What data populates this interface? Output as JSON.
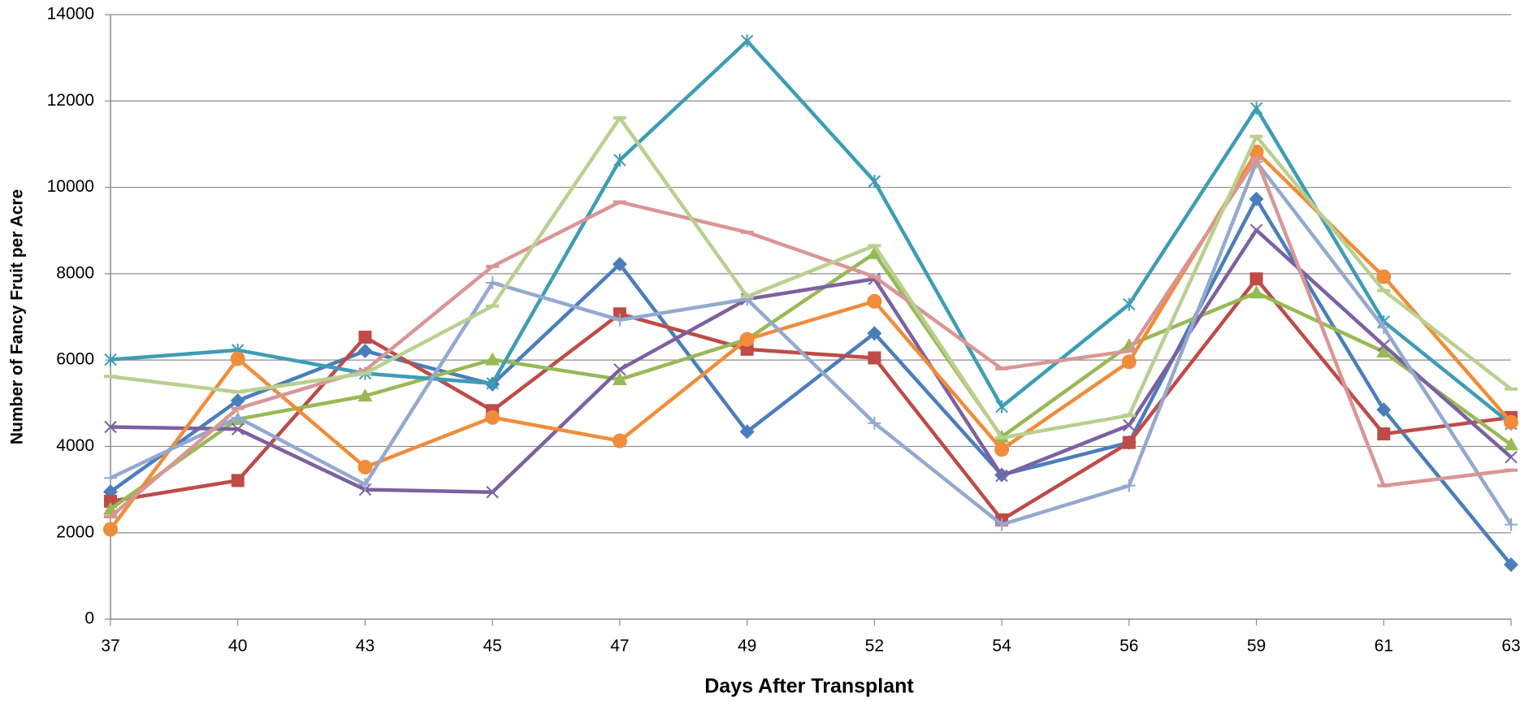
{
  "chart_data": {
    "type": "line",
    "x_label": "Days After Transplant",
    "y_label": "Number of Fancy Fruit per Acre",
    "categories": [
      "37",
      "40",
      "43",
      "45",
      "47",
      "49",
      "52",
      "54",
      "56",
      "59",
      "61",
      "63"
    ],
    "ylim": [
      0,
      14000
    ],
    "yticks": [
      0,
      2000,
      4000,
      6000,
      8000,
      10000,
      12000,
      14000
    ],
    "grid": true,
    "series": [
      {
        "color": "#4a7ebb",
        "marker": "diamond",
        "values": [
          2950,
          5060,
          6210,
          5440,
          8220,
          4340,
          6620,
          3340,
          4090,
          9730,
          4850,
          1260
        ]
      },
      {
        "color": "#be4b48",
        "marker": "square",
        "values": [
          2730,
          3210,
          6530,
          4830,
          7070,
          6250,
          6050,
          2300,
          4090,
          7880,
          4290,
          4670
        ]
      },
      {
        "color": "#98b954",
        "marker": "triangle",
        "values": [
          2550,
          4630,
          5170,
          6010,
          5550,
          6480,
          8470,
          4220,
          6340,
          7560,
          6190,
          4040
        ]
      },
      {
        "color": "#7d60a0",
        "marker": "x",
        "values": [
          4450,
          4400,
          3000,
          2940,
          5780,
          7410,
          7880,
          3320,
          4490,
          9010,
          6340,
          3750
        ]
      },
      {
        "color": "#3d9db5",
        "marker": "star",
        "values": [
          6010,
          6230,
          5690,
          5460,
          10630,
          13390,
          10140,
          4920,
          7290,
          11830,
          6890,
          4520
        ]
      },
      {
        "color": "#f08c3a",
        "marker": "circle",
        "values": [
          2080,
          6030,
          3520,
          4670,
          4130,
          6480,
          7360,
          3930,
          5960,
          10820,
          7930,
          4560
        ]
      },
      {
        "color": "#93a9cf",
        "marker": "plus",
        "values": [
          3270,
          4670,
          3120,
          7790,
          6930,
          7410,
          4540,
          2190,
          3090,
          10590,
          6750,
          2190
        ]
      },
      {
        "color": "#d99694",
        "marker": "dash",
        "values": [
          2370,
          4880,
          5760,
          8170,
          9660,
          8960,
          7930,
          5800,
          6210,
          10660,
          3090,
          3450
        ]
      },
      {
        "color": "#b9d08f",
        "marker": "dash",
        "values": [
          5620,
          5260,
          5690,
          7250,
          11610,
          7470,
          8650,
          4200,
          4720,
          11180,
          7610,
          5330
        ]
      }
    ]
  }
}
